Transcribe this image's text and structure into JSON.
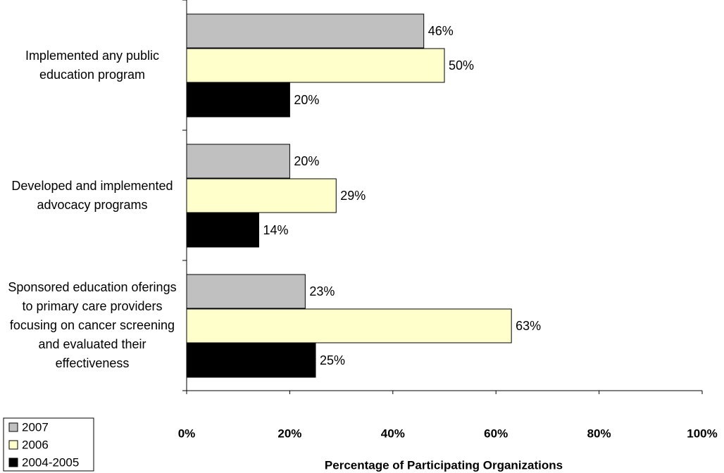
{
  "chart_data": {
    "type": "bar",
    "orientation": "horizontal",
    "categories": [
      "Implemented any public education program",
      "Developed and implemented advocacy programs",
      "Sponsored education oferings to primary care providers focusing on cancer screening and evaluated their effectiveness"
    ],
    "series": [
      {
        "name": "2007",
        "color": "#c0c0c0",
        "values": [
          46,
          20,
          23
        ],
        "value_labels": [
          "46%",
          "20%",
          "23%"
        ]
      },
      {
        "name": "2006",
        "color": "#ffffcc",
        "values": [
          50,
          29,
          63
        ],
        "value_labels": [
          "50%",
          "29%",
          "63%"
        ]
      },
      {
        "name": "2004-2005",
        "color": "#000000",
        "values": [
          20,
          14,
          25
        ],
        "value_labels": [
          "20%",
          "14%",
          "25%"
        ]
      }
    ],
    "xlabel": "Percentage of Participating Organizations",
    "xlim": [
      0,
      100
    ],
    "xticks": [
      {
        "value": 0,
        "label": "0%"
      },
      {
        "value": 20,
        "label": "20%"
      },
      {
        "value": 40,
        "label": "40%"
      },
      {
        "value": 60,
        "label": "60%"
      },
      {
        "value": 80,
        "label": "80%"
      },
      {
        "value": 100,
        "label": "100%"
      }
    ],
    "legend": "bottom-left"
  }
}
